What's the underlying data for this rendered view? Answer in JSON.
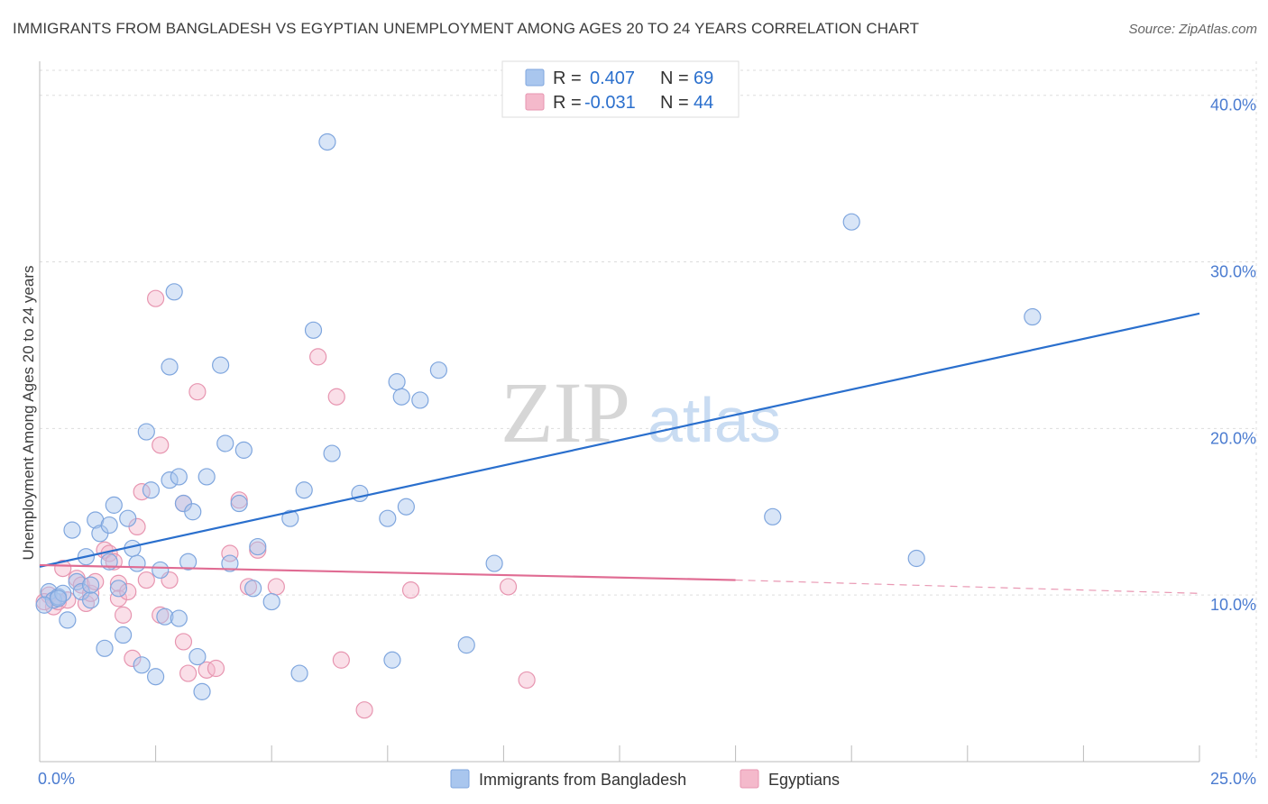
{
  "header": {
    "title": "IMMIGRANTS FROM BANGLADESH VS EGYPTIAN UNEMPLOYMENT AMONG AGES 20 TO 24 YEARS CORRELATION CHART",
    "source": "Source: ZipAtlas.com"
  },
  "watermark": {
    "zip": "ZIP",
    "atlas": "atlas"
  },
  "legend_box": {
    "rows": [
      {
        "r_label": "R = ",
        "r_value": "0.407",
        "n_label": "N = ",
        "n_value": "69"
      },
      {
        "r_label": "R = ",
        "r_value": "-0.031",
        "n_label": "N = ",
        "n_value": "44"
      }
    ]
  },
  "colors": {
    "blue_fill": "#a9c6ee",
    "blue_stroke": "#7fa6de",
    "blue_line": "#2a6fcd",
    "pink_fill": "#f4b9cb",
    "pink_stroke": "#e795b0",
    "pink_line": "#e06c93",
    "axis_label": "#4a7bd0",
    "grid": "#dddddd"
  },
  "chart_data": {
    "type": "scatter",
    "title": "IMMIGRANTS FROM BANGLADESH VS EGYPTIAN UNEMPLOYMENT AMONG AGES 20 TO 24 YEARS CORRELATION CHART",
    "xlabel": "",
    "ylabel": "Unemployment Among Ages 20 to 24 years",
    "xlim": [
      0,
      25
    ],
    "ylim": [
      0,
      41.5
    ],
    "x_tick_labels": [
      {
        "value": 0,
        "label": "0.0%"
      },
      {
        "value": 25,
        "label": "25.0%"
      }
    ],
    "y_tick_labels": [
      {
        "value": 10,
        "label": "10.0%"
      },
      {
        "value": 20,
        "label": "20.0%"
      },
      {
        "value": 30,
        "label": "30.0%"
      },
      {
        "value": 40,
        "label": "40.0%"
      }
    ],
    "grid": true,
    "legend_position": "bottom",
    "series": [
      {
        "name": "Immigrants from Bangladesh",
        "color": "#a9c6ee",
        "trend": {
          "x": [
            0,
            25
          ],
          "y": [
            11.7,
            26.9
          ]
        },
        "points": [
          [
            0.2,
            10.2
          ],
          [
            0.3,
            9.7
          ],
          [
            0.4,
            9.9
          ],
          [
            0.5,
            10.1
          ],
          [
            0.6,
            8.5
          ],
          [
            0.7,
            13.9
          ],
          [
            0.8,
            10.8
          ],
          [
            0.9,
            10.2
          ],
          [
            1.0,
            12.3
          ],
          [
            1.1,
            9.7
          ],
          [
            1.1,
            10.6
          ],
          [
            1.2,
            14.5
          ],
          [
            1.3,
            13.7
          ],
          [
            1.4,
            6.8
          ],
          [
            1.5,
            14.2
          ],
          [
            1.5,
            12.0
          ],
          [
            1.6,
            15.4
          ],
          [
            1.7,
            10.4
          ],
          [
            1.8,
            7.6
          ],
          [
            1.9,
            14.6
          ],
          [
            2.0,
            12.8
          ],
          [
            2.1,
            11.9
          ],
          [
            2.2,
            5.8
          ],
          [
            2.3,
            19.8
          ],
          [
            2.4,
            16.3
          ],
          [
            2.5,
            5.1
          ],
          [
            2.6,
            11.5
          ],
          [
            2.7,
            8.7
          ],
          [
            2.8,
            16.9
          ],
          [
            2.8,
            23.7
          ],
          [
            2.9,
            28.2
          ],
          [
            3.0,
            17.1
          ],
          [
            3.0,
            8.6
          ],
          [
            3.1,
            15.5
          ],
          [
            3.2,
            12.0
          ],
          [
            3.3,
            15.0
          ],
          [
            3.4,
            6.3
          ],
          [
            3.5,
            4.2
          ],
          [
            3.6,
            17.1
          ],
          [
            3.9,
            23.8
          ],
          [
            4.0,
            19.1
          ],
          [
            4.1,
            11.9
          ],
          [
            4.3,
            15.5
          ],
          [
            4.4,
            18.7
          ],
          [
            4.6,
            10.4
          ],
          [
            4.7,
            12.9
          ],
          [
            5.0,
            9.6
          ],
          [
            5.4,
            14.6
          ],
          [
            5.6,
            5.3
          ],
          [
            5.7,
            16.3
          ],
          [
            5.9,
            25.9
          ],
          [
            6.2,
            37.2
          ],
          [
            6.3,
            18.5
          ],
          [
            6.9,
            16.1
          ],
          [
            7.5,
            14.6
          ],
          [
            7.7,
            22.8
          ],
          [
            7.8,
            21.9
          ],
          [
            7.9,
            15.3
          ],
          [
            7.6,
            6.1
          ],
          [
            8.2,
            21.7
          ],
          [
            8.6,
            23.5
          ],
          [
            9.2,
            7.0
          ],
          [
            9.8,
            11.9
          ],
          [
            15.8,
            14.7
          ],
          [
            17.5,
            32.4
          ],
          [
            18.9,
            12.2
          ],
          [
            21.4,
            26.7
          ],
          [
            0.1,
            9.4
          ],
          [
            0.4,
            9.8
          ]
        ]
      },
      {
        "name": "Egyptians",
        "color": "#f4b9cb",
        "trend": {
          "x": [
            0,
            15
          ],
          "y": [
            11.8,
            10.9
          ]
        },
        "trend_dashed": {
          "x": [
            15,
            25
          ],
          "y": [
            10.9,
            10.1
          ]
        },
        "points": [
          [
            0.2,
            10.0
          ],
          [
            0.3,
            9.3
          ],
          [
            0.4,
            9.6
          ],
          [
            0.5,
            11.6
          ],
          [
            0.6,
            9.7
          ],
          [
            0.8,
            11.0
          ],
          [
            0.9,
            10.6
          ],
          [
            1.0,
            9.5
          ],
          [
            1.1,
            10.1
          ],
          [
            1.2,
            10.8
          ],
          [
            1.4,
            12.7
          ],
          [
            1.5,
            12.5
          ],
          [
            1.6,
            12.0
          ],
          [
            1.7,
            10.7
          ],
          [
            1.7,
            9.8
          ],
          [
            1.8,
            8.8
          ],
          [
            1.9,
            10.2
          ],
          [
            2.0,
            6.2
          ],
          [
            2.1,
            14.1
          ],
          [
            2.2,
            16.2
          ],
          [
            2.3,
            10.9
          ],
          [
            2.5,
            27.8
          ],
          [
            2.6,
            19.0
          ],
          [
            2.6,
            8.8
          ],
          [
            2.8,
            10.9
          ],
          [
            3.1,
            15.5
          ],
          [
            3.1,
            7.2
          ],
          [
            3.2,
            5.3
          ],
          [
            3.4,
            22.2
          ],
          [
            3.6,
            5.5
          ],
          [
            3.8,
            5.6
          ],
          [
            4.1,
            12.5
          ],
          [
            4.3,
            15.7
          ],
          [
            4.5,
            10.5
          ],
          [
            4.7,
            12.7
          ],
          [
            5.1,
            10.5
          ],
          [
            6.0,
            24.3
          ],
          [
            6.4,
            21.9
          ],
          [
            6.5,
            6.1
          ],
          [
            7.0,
            3.1
          ],
          [
            8.0,
            10.3
          ],
          [
            10.1,
            10.5
          ],
          [
            10.5,
            4.9
          ],
          [
            0.1,
            9.6
          ]
        ]
      }
    ]
  },
  "bottom_legend": {
    "items": [
      "Immigrants from Bangladesh",
      "Egyptians"
    ]
  }
}
